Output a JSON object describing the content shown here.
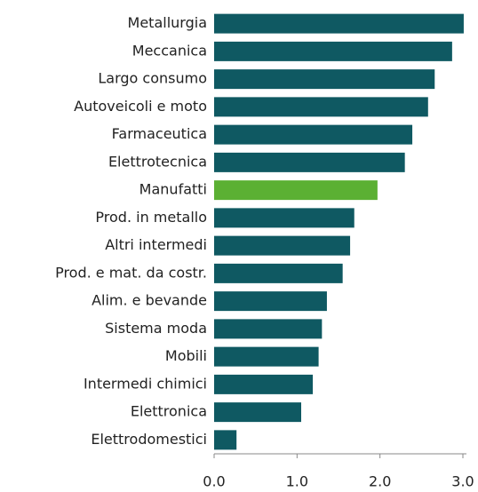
{
  "chart_data": {
    "type": "bar",
    "orientation": "horizontal",
    "categories": [
      "Metallurgia",
      "Meccanica",
      "Largo consumo",
      "Autoveicoli e moto",
      "Farmaceutica",
      "Elettrotecnica",
      "Manufatti",
      "Prod. in metallo",
      "Altri intermedi",
      "Prod. e mat. da costr.",
      "Alim. e bevande",
      "Sistema moda",
      "Mobili",
      "Intermedi chimici",
      "Elettronica",
      "Elettrodomestici"
    ],
    "values": [
      3.01,
      2.87,
      2.66,
      2.58,
      2.39,
      2.3,
      1.97,
      1.69,
      1.64,
      1.55,
      1.36,
      1.3,
      1.26,
      1.19,
      1.05,
      0.27
    ],
    "colors": [
      "#0f5962",
      "#0f5962",
      "#0f5962",
      "#0f5962",
      "#0f5962",
      "#0f5962",
      "#5bb033",
      "#0f5962",
      "#0f5962",
      "#0f5962",
      "#0f5962",
      "#0f5962",
      "#0f5962",
      "#0f5962",
      "#0f5962",
      "#0f5962"
    ],
    "xlim": [
      0,
      3.0
    ],
    "xticks": [
      {
        "value": 0,
        "label": "0.0"
      },
      {
        "value": 1,
        "label": "1.0"
      },
      {
        "value": 2,
        "label": "2.0"
      },
      {
        "value": 3,
        "label": "3.0"
      }
    ]
  }
}
